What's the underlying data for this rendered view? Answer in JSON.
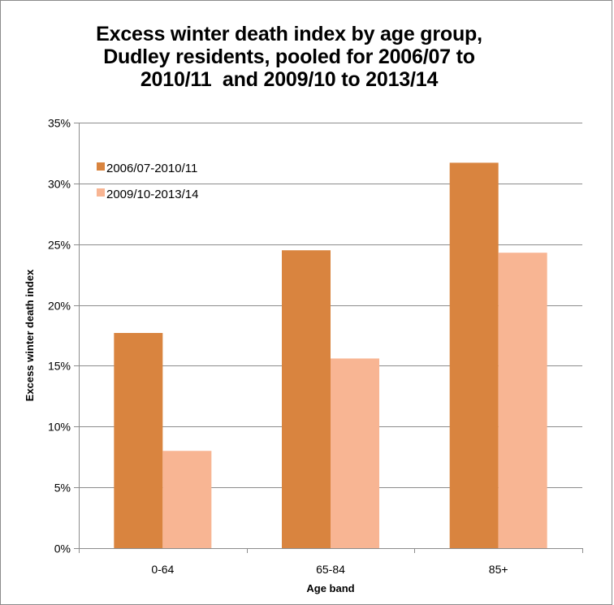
{
  "chart_data": {
    "type": "bar",
    "title": [
      "Excess winter death index by age group,",
      "Dudley residents, pooled for 2006/07 to",
      "2010/11  and 2009/10 to 2013/14"
    ],
    "xlabel": "Age band",
    "ylabel": "Excess winter death index",
    "categories": [
      "0-64",
      "65-84",
      "85+"
    ],
    "series": [
      {
        "name": "2006/07-2010/11",
        "color": "#d9843f",
        "values": [
          17.7,
          24.5,
          31.7
        ]
      },
      {
        "name": "2009/10-2013/14",
        "color": "#f8b593",
        "values": [
          8.0,
          15.6,
          24.3
        ]
      }
    ],
    "ylim": [
      0,
      35
    ],
    "yticks": [
      0,
      5,
      10,
      15,
      20,
      25,
      30,
      35
    ],
    "ytick_labels": [
      "0%",
      "5%",
      "10%",
      "15%",
      "20%",
      "25%",
      "30%",
      "35%"
    ],
    "grid": true,
    "legend_position": "top-left"
  }
}
